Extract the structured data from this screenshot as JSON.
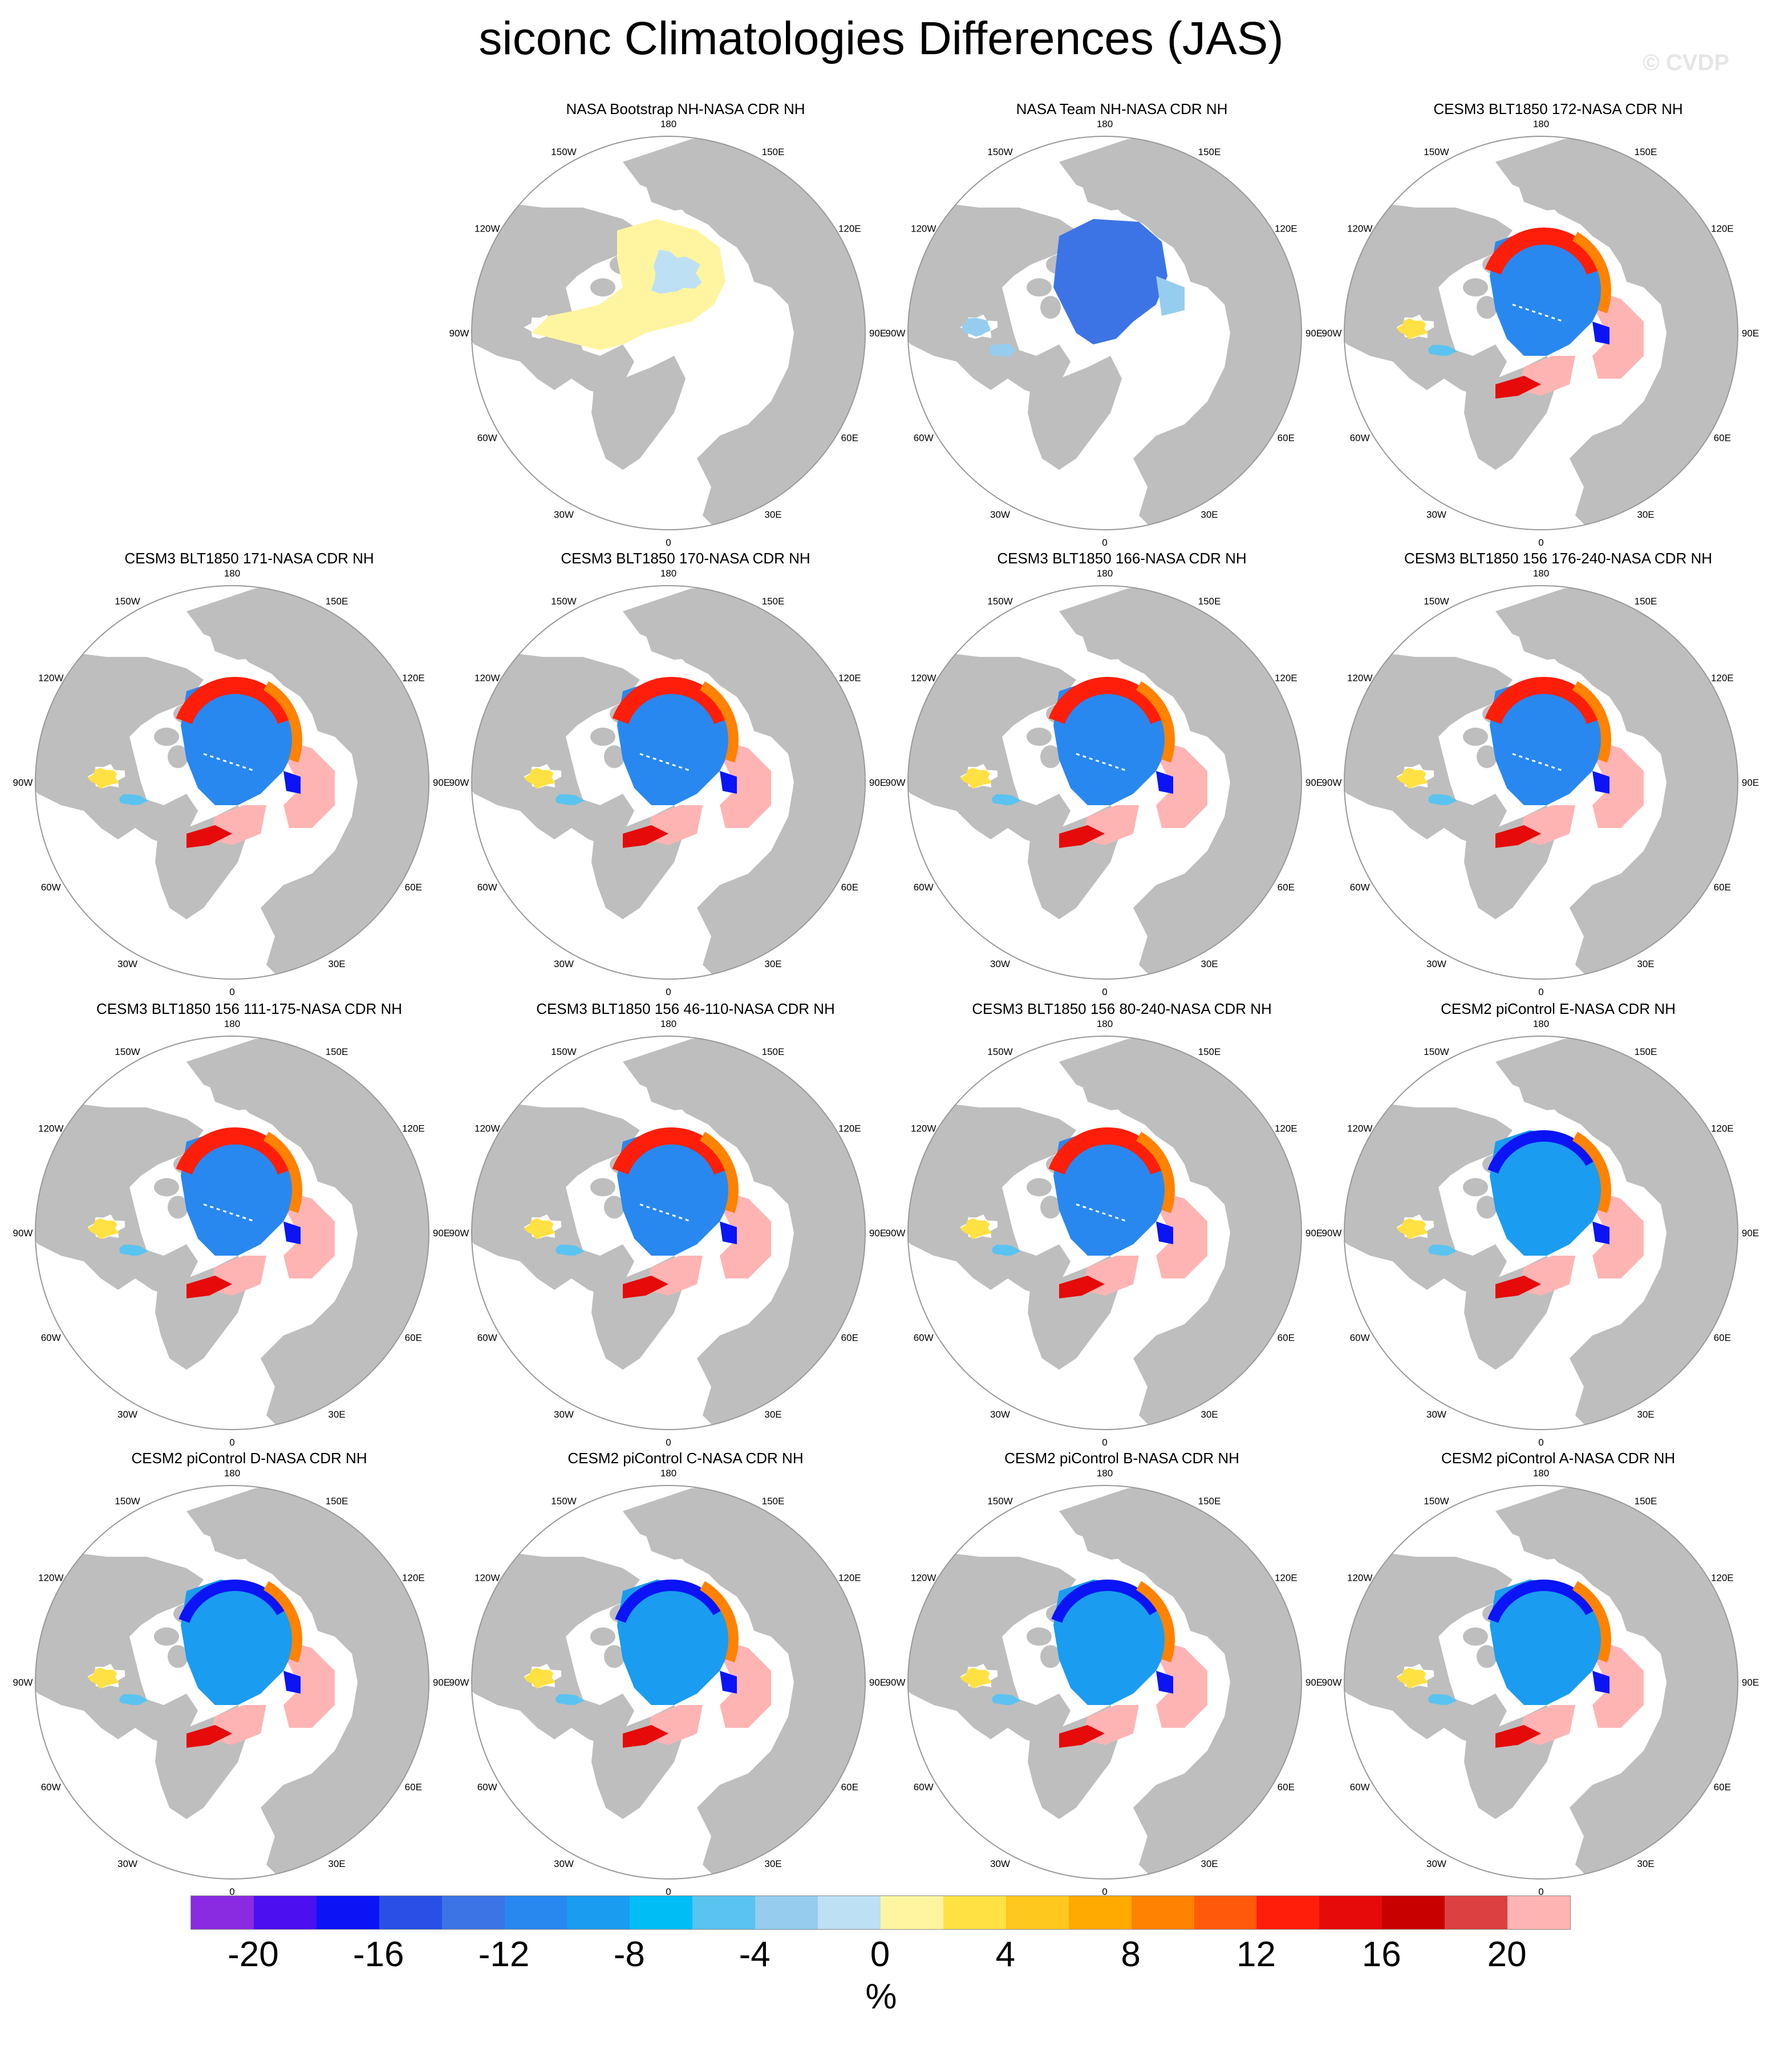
{
  "title": "siconc Climatologies Differences (JAS)",
  "watermark": "© CVDP",
  "lon_labels": [
    "180",
    "150E",
    "120E",
    "90E",
    "60E",
    "30E",
    "0",
    "30W",
    "60W",
    "90W",
    "120W",
    "150W"
  ],
  "colors": {
    "land": "#bebebe",
    "ocean": "#ffffff",
    "ring": "#999999"
  },
  "legend": {
    "unit": "%",
    "ticks": [
      "-20",
      "-16",
      "-12",
      "-8",
      "-4",
      "0",
      "4",
      "8",
      "12",
      "16",
      "20"
    ],
    "colors": [
      "#8a2be2",
      "#4b0ff0",
      "#0a14f5",
      "#2850e6",
      "#3c74e6",
      "#2888f0",
      "#1a9cf0",
      "#00bef5",
      "#5ac3f0",
      "#96cdee",
      "#bee0f5",
      "#fff5a0",
      "#ffe144",
      "#ffc81e",
      "#ffaa00",
      "#ff8200",
      "#ff5a0a",
      "#ff1e0a",
      "#e60a0a",
      "#c80000",
      "#dc4040",
      "#ffb4b4"
    ]
  },
  "panels": [
    {
      "title": "NASA Bootstrap NH-NASA CDR NH",
      "style": "bootstrap"
    },
    {
      "title": "NASA Team NH-NASA CDR NH",
      "style": "team"
    },
    {
      "title": "CESM3 BLT1850 172-NASA CDR NH",
      "style": "cesm3"
    },
    {
      "title": "CESM3 BLT1850 171-NASA CDR NH",
      "style": "cesm3"
    },
    {
      "title": "CESM3 BLT1850 170-NASA CDR NH",
      "style": "cesm3"
    },
    {
      "title": "CESM3 BLT1850 166-NASA CDR NH",
      "style": "cesm3"
    },
    {
      "title": "CESM3 BLT1850 156 176-240-NASA CDR NH",
      "style": "cesm3"
    },
    {
      "title": "CESM3 BLT1850 156 111-175-NASA CDR NH",
      "style": "cesm3"
    },
    {
      "title": "CESM3 BLT1850 156 46-110-NASA CDR NH",
      "style": "cesm3"
    },
    {
      "title": "CESM3 BLT1850 156 80-240-NASA CDR NH",
      "style": "cesm3"
    },
    {
      "title": "CESM2 piControl E-NASA CDR NH",
      "style": "cesm2"
    },
    {
      "title": "CESM2 piControl D-NASA CDR NH",
      "style": "cesm2"
    },
    {
      "title": "CESM2 piControl C-NASA CDR NH",
      "style": "cesm2"
    },
    {
      "title": "CESM2 piControl B-NASA CDR NH",
      "style": "cesm2"
    },
    {
      "title": "CESM2 piControl A-NASA CDR NH",
      "style": "cesm2"
    }
  ]
}
